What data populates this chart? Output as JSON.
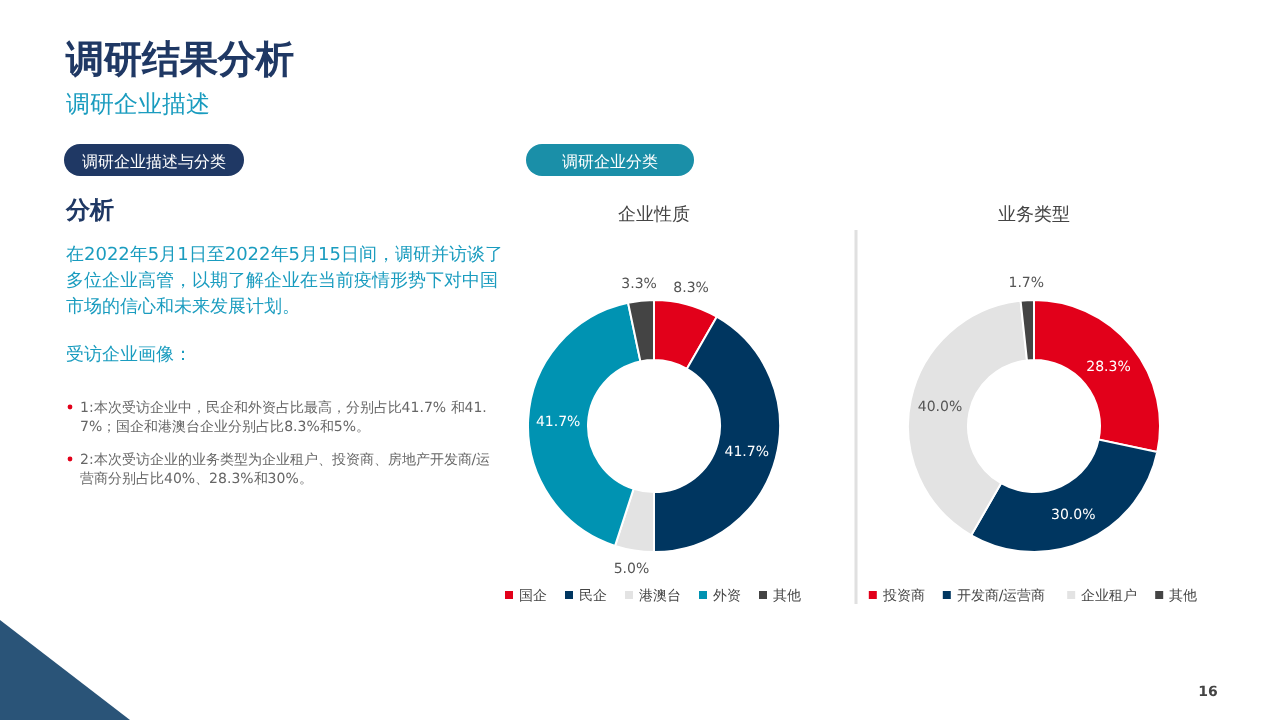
{
  "chart_data": [
    {
      "type": "other",
      "title": "调研结果分析",
      "subtitle": "调研企业描述",
      "annotations": [
        "调研企业描述与分类",
        "分析",
        "在2022年5月1日至2022年5月15日间，调研并访谈了多位企业高管，以期了解企业在当前疫情形势下对中国市场的信心和未来发展计划。",
        "受访企业画像：",
        "1:本次受访企业中，民企和外资占比最高，分别占比41.7% 和41.7%；国企和港澳台企业分别占比8.3%和5%。",
        "2:本次受访企业的业务类型为企业租户、投资商、房地产开发商/运营商分别占比40%、28.3%和30%。",
        "调研企业分类",
        "16"
      ]
    },
    {
      "type": "donut",
      "title": "企业性质",
      "categories": [
        "国企",
        "民企",
        "港澳台",
        "外资",
        "其他"
      ],
      "values": [
        8.3,
        41.7,
        5.0,
        41.7,
        3.3
      ],
      "colors": [
        "#e2001a",
        "#003660",
        "#e3e3e3",
        "#0093b2",
        "#444444"
      ],
      "value_labels": [
        "8.3%",
        "41.7%",
        "5.0%",
        "41.7%",
        "3.3%"
      ],
      "legend": "bottom"
    },
    {
      "type": "donut",
      "title": "业务类型",
      "categories": [
        "投资商",
        "开发商/运营商",
        "企业租户",
        "其他"
      ],
      "values": [
        28.3,
        30.0,
        40.0,
        1.7
      ],
      "colors": [
        "#e2001a",
        "#003660",
        "#e3e3e3",
        "#444444"
      ],
      "value_labels": [
        "28.3%",
        "30.0%",
        "40.0%",
        "1.7%"
      ],
      "legend": "bottom"
    }
  ]
}
